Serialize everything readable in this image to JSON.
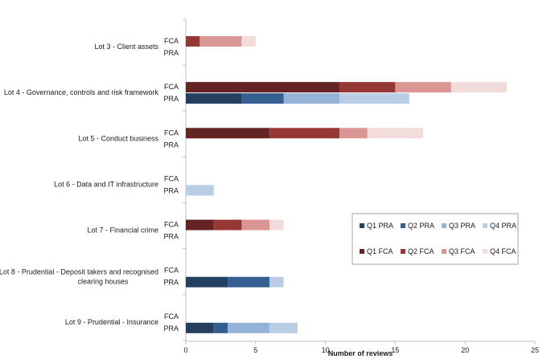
{
  "chart_data": {
    "type": "bar",
    "orientation": "horizontal",
    "stacked": true,
    "title": "",
    "xlabel": "Number of reviews",
    "ylabel": "",
    "xlim": [
      0,
      25
    ],
    "xticks": [
      0,
      5,
      10,
      15,
      20,
      25
    ],
    "grid": false,
    "legend_position": "right",
    "categories": [
      {
        "label": "Lot 3 - Client assets",
        "label_lines": [
          "Lot 3 - Client assets"
        ]
      },
      {
        "label": "Lot 4 - Governance, controls and risk framework",
        "label_lines": [
          "Lot 4 - Governance, controls and risk framework"
        ]
      },
      {
        "label": "Lot 5 - Conduct business",
        "label_lines": [
          "Lot 5 - Conduct business"
        ]
      },
      {
        "label": "Lot 6 - Data and IT infrastructure",
        "label_lines": [
          "Lot 6 - Data and IT infrastructure"
        ]
      },
      {
        "label": "Lot 7 - Financial crime",
        "label_lines": [
          "Lot 7 - Financial crime"
        ]
      },
      {
        "label": "Lot 8 - Prudential - Deposit takers and recognised clearing houses",
        "label_lines": [
          "Lot 8 - Prudential - Deposit takers and recognised",
          "clearing houses"
        ]
      },
      {
        "label": "Lot 9 - Prudential - Insurance",
        "label_lines": [
          "Lot 9 - Prudential - Insurance"
        ]
      }
    ],
    "sub_categories": [
      "FCA",
      "PRA"
    ],
    "series": [
      {
        "name": "Q1 PRA",
        "regulator": "PRA",
        "color": "#243F60",
        "values": [
          0,
          4,
          0,
          0,
          0,
          3,
          2
        ]
      },
      {
        "name": "Q2 PRA",
        "regulator": "PRA",
        "color": "#365F91",
        "values": [
          0,
          3,
          0,
          0,
          0,
          3,
          1
        ]
      },
      {
        "name": "Q3 PRA",
        "regulator": "PRA",
        "color": "#95B3D7",
        "values": [
          0,
          4,
          0,
          0,
          0,
          0,
          3
        ]
      },
      {
        "name": "Q4 PRA",
        "regulator": "PRA",
        "color": "#B9CDE5",
        "values": [
          0,
          5,
          0,
          2,
          0,
          1,
          2
        ]
      },
      {
        "name": "Q1 FCA",
        "regulator": "FCA",
        "color": "#632423",
        "values": [
          0,
          11,
          6,
          0,
          2,
          0,
          0
        ]
      },
      {
        "name": "Q2 FCA",
        "regulator": "FCA",
        "color": "#953735",
        "values": [
          1,
          4,
          5,
          0,
          2,
          0,
          0
        ]
      },
      {
        "name": "Q3 FCA",
        "regulator": "FCA",
        "color": "#D99694",
        "values": [
          3,
          4,
          2,
          0,
          2,
          0,
          0
        ]
      },
      {
        "name": "Q4 FCA",
        "regulator": "FCA",
        "color": "#F2DCDB",
        "values": [
          1,
          4,
          4,
          0,
          1,
          0,
          0
        ]
      }
    ]
  }
}
